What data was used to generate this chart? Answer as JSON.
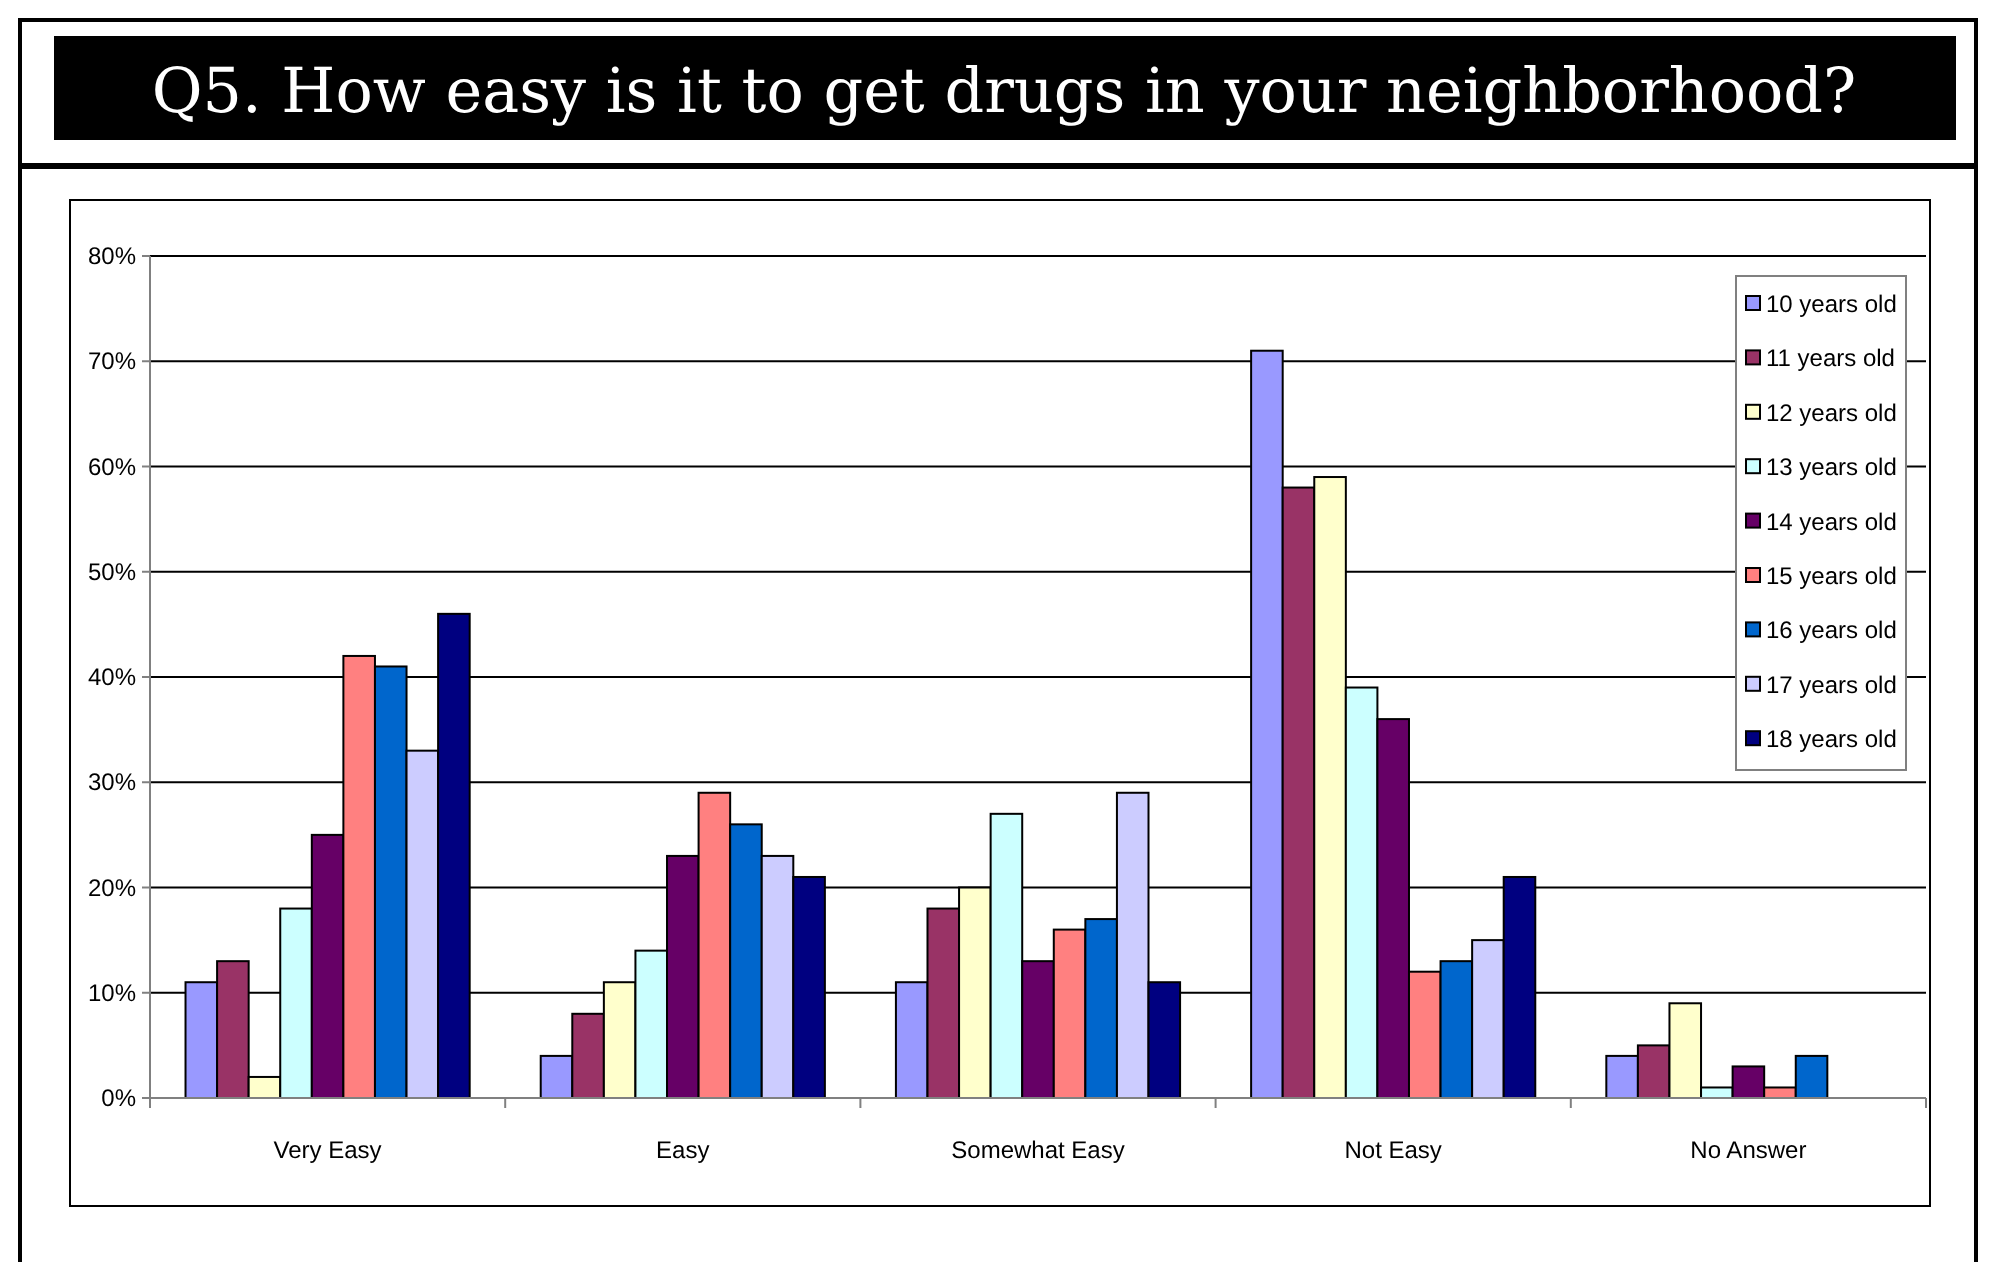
{
  "chart_data": {
    "type": "bar",
    "title": "Q5.  How easy is it to get drugs in your neighborhood?",
    "categories": [
      "Very Easy",
      "Easy",
      "Somewhat Easy",
      "Not Easy",
      "No Answer"
    ],
    "series": [
      {
        "name": "10 years old",
        "color": "#9999ff",
        "values": [
          11,
          4,
          11,
          71,
          4
        ]
      },
      {
        "name": "11 years old",
        "color": "#993366",
        "values": [
          13,
          8,
          18,
          58,
          5
        ]
      },
      {
        "name": "12 years old",
        "color": "#ffffcc",
        "values": [
          2,
          11,
          20,
          59,
          9
        ]
      },
      {
        "name": "13 years old",
        "color": "#ccffff",
        "values": [
          18,
          14,
          27,
          39,
          1
        ]
      },
      {
        "name": "14 years old",
        "color": "#660066",
        "values": [
          25,
          23,
          13,
          36,
          3
        ]
      },
      {
        "name": "15 years old",
        "color": "#ff8080",
        "values": [
          42,
          29,
          16,
          12,
          1
        ]
      },
      {
        "name": "16 years old",
        "color": "#0066cc",
        "values": [
          41,
          26,
          17,
          13,
          4
        ]
      },
      {
        "name": "17 years old",
        "color": "#ccccff",
        "values": [
          33,
          23,
          29,
          15,
          null
        ]
      },
      {
        "name": "18 years old",
        "color": "#000080",
        "values": [
          46,
          21,
          11,
          21,
          null
        ]
      }
    ],
    "ylim": [
      0,
      80
    ],
    "yticks": [
      {
        "value": 0,
        "label": "0%"
      },
      {
        "value": 10,
        "label": "10%"
      },
      {
        "value": 20,
        "label": "20%"
      },
      {
        "value": 30,
        "label": "30%"
      },
      {
        "value": 40,
        "label": "40%"
      },
      {
        "value": 50,
        "label": "50%"
      },
      {
        "value": 60,
        "label": "60%"
      },
      {
        "value": 70,
        "label": "70%"
      },
      {
        "value": 80,
        "label": "80%"
      }
    ],
    "grid": "y",
    "legend": "top right"
  }
}
